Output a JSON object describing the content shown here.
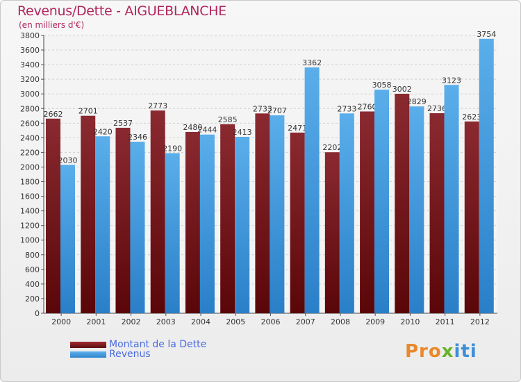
{
  "chart_data": {
    "type": "bar",
    "title": "Revenus/Dette - AIGUEBLANCHE",
    "subtitle": "(en milliers d'€)",
    "categories": [
      "2000",
      "2001",
      "2002",
      "2003",
      "2004",
      "2005",
      "2006",
      "2007",
      "2008",
      "2009",
      "2010",
      "2011",
      "2012"
    ],
    "series": [
      {
        "name": "Montant de la Dette",
        "color": "#7a1e22",
        "values": [
          2662,
          2701,
          2537,
          2773,
          2480,
          2585,
          2733,
          2471,
          2202,
          2760,
          3002,
          2736,
          2623
        ]
      },
      {
        "name": "Revenus",
        "color": "#3d97df",
        "values": [
          2030,
          2420,
          2346,
          2190,
          2444,
          2413,
          2707,
          3362,
          2733,
          3058,
          2829,
          3123,
          3754
        ]
      }
    ],
    "ylim": [
      0,
      3800
    ],
    "ytick_step": 200,
    "grid": true,
    "legend_position": "bottom-left"
  },
  "legend": {
    "debt_label": "Montant de la Dette",
    "revenue_label": "Revenus"
  },
  "brand": {
    "p1": "Pro",
    "p2": "x",
    "p3": "iti"
  }
}
